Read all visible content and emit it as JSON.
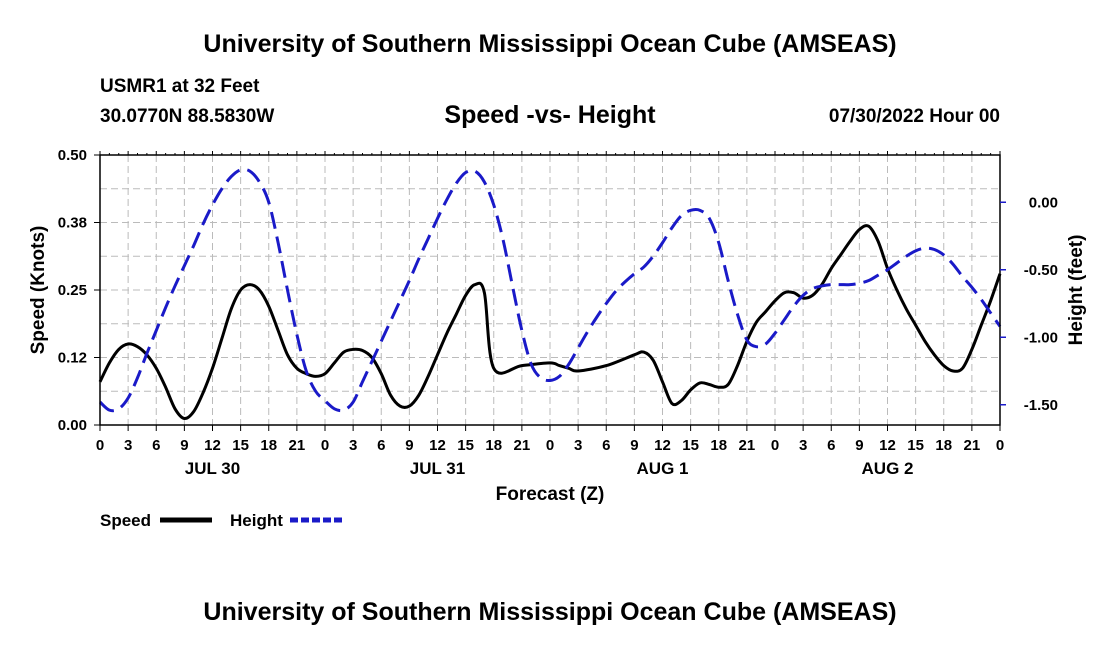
{
  "header": {
    "title": "University of Southern Mississippi Ocean Cube (AMSEAS)",
    "station": "USMR1 at 32 Feet",
    "coordinates": "30.0770N  88.5830W",
    "subtitle": "Speed -vs- Height",
    "datestamp": "07/30/2022 Hour 00"
  },
  "footer": {
    "title": "University of Southern Mississippi Ocean Cube (AMSEAS)"
  },
  "chart_data": {
    "type": "line",
    "title": "Speed -vs- Height",
    "xlabel": "Forecast (Z)",
    "ylabel_left": "Speed (Knots)",
    "ylabel_right": "Height (feet)",
    "x_unit": "forecast hour",
    "xlim": [
      0,
      96
    ],
    "ylim_left": [
      0,
      0.5
    ],
    "ylim_right": [
      -1.65,
      0.35
    ],
    "x_ticks": [
      0,
      3,
      6,
      9,
      12,
      15,
      18,
      21,
      24,
      27,
      30,
      33,
      36,
      39,
      42,
      45,
      48,
      51,
      54,
      57,
      60,
      63,
      66,
      69,
      72,
      75,
      78,
      81,
      84,
      87,
      90,
      93,
      96
    ],
    "x_tick_labels": [
      "0",
      "3",
      "6",
      "9",
      "12",
      "15",
      "18",
      "21",
      "0",
      "3",
      "6",
      "9",
      "12",
      "15",
      "18",
      "21",
      "0",
      "3",
      "6",
      "9",
      "12",
      "15",
      "18",
      "21",
      "0",
      "3",
      "6",
      "9",
      "12",
      "15",
      "18",
      "21",
      "0"
    ],
    "day_labels": [
      {
        "label": "JUL 30",
        "hour": 12
      },
      {
        "label": "JUL 31",
        "hour": 36
      },
      {
        "label": "AUG 1",
        "hour": 60
      },
      {
        "label": "AUG 2",
        "hour": 84
      }
    ],
    "y_left_ticks": [
      {
        "value": 0.0,
        "label": "0.00"
      },
      {
        "value": 0.125,
        "label": "0.12"
      },
      {
        "value": 0.25,
        "label": "0.25"
      },
      {
        "value": 0.375,
        "label": "0.38"
      },
      {
        "value": 0.5,
        "label": "0.50"
      }
    ],
    "y_right_ticks": [
      {
        "value": 0.0,
        "label": "0.00"
      },
      {
        "value": -0.5,
        "label": "-0.50"
      },
      {
        "value": -1.0,
        "label": "-1.00"
      },
      {
        "value": -1.5,
        "label": "-1.50"
      }
    ],
    "grid": true,
    "legend": [
      {
        "name": "Speed",
        "color": "#000000",
        "style": "solid"
      },
      {
        "name": "Height",
        "color": "#1a1ac8",
        "style": "dashed"
      }
    ],
    "series": [
      {
        "name": "Speed",
        "axis": "left",
        "color": "#000000",
        "points": [
          [
            0,
            0.08
          ],
          [
            1,
            0.115
          ],
          [
            2,
            0.14
          ],
          [
            3,
            0.15
          ],
          [
            4,
            0.145
          ],
          [
            5,
            0.13
          ],
          [
            6,
            0.105
          ],
          [
            7,
            0.07
          ],
          [
            8,
            0.03
          ],
          [
            9,
            0.012
          ],
          [
            10,
            0.025
          ],
          [
            11,
            0.06
          ],
          [
            12,
            0.105
          ],
          [
            13,
            0.16
          ],
          [
            14,
            0.215
          ],
          [
            15,
            0.25
          ],
          [
            16,
            0.26
          ],
          [
            17,
            0.25
          ],
          [
            18,
            0.22
          ],
          [
            19,
            0.175
          ],
          [
            20,
            0.13
          ],
          [
            21,
            0.105
          ],
          [
            22,
            0.095
          ],
          [
            23,
            0.09
          ],
          [
            24,
            0.095
          ],
          [
            25,
            0.115
          ],
          [
            26,
            0.135
          ],
          [
            27,
            0.14
          ],
          [
            28,
            0.138
          ],
          [
            29,
            0.125
          ],
          [
            30,
            0.095
          ],
          [
            31,
            0.055
          ],
          [
            32,
            0.035
          ],
          [
            33,
            0.035
          ],
          [
            34,
            0.055
          ],
          [
            35,
            0.09
          ],
          [
            36,
            0.13
          ],
          [
            37,
            0.17
          ],
          [
            38,
            0.205
          ],
          [
            39,
            0.24
          ],
          [
            40,
            0.26
          ],
          [
            41,
            0.245
          ],
          [
            42,
            0.105
          ],
          [
            45,
            0.11
          ],
          [
            48,
            0.115
          ],
          [
            49,
            0.11
          ],
          [
            50,
            0.105
          ],
          [
            51,
            0.1
          ],
          [
            54,
            0.11
          ],
          [
            57,
            0.13
          ],
          [
            58,
            0.135
          ],
          [
            59,
            0.12
          ],
          [
            60,
            0.08
          ],
          [
            61,
            0.04
          ],
          [
            62,
            0.045
          ],
          [
            63,
            0.065
          ],
          [
            64,
            0.078
          ],
          [
            65,
            0.075
          ],
          [
            66,
            0.07
          ],
          [
            67,
            0.075
          ],
          [
            68,
            0.11
          ],
          [
            69,
            0.155
          ],
          [
            70,
            0.19
          ],
          [
            71,
            0.21
          ],
          [
            72,
            0.23
          ],
          [
            73,
            0.245
          ],
          [
            74,
            0.245
          ],
          [
            75,
            0.235
          ],
          [
            76,
            0.24
          ],
          [
            77,
            0.26
          ],
          [
            78,
            0.29
          ],
          [
            79,
            0.315
          ],
          [
            80,
            0.34
          ],
          [
            81,
            0.362
          ],
          [
            82,
            0.368
          ],
          [
            83,
            0.34
          ],
          [
            84,
            0.29
          ],
          [
            85,
            0.25
          ],
          [
            86,
            0.215
          ],
          [
            87,
            0.185
          ],
          [
            88,
            0.155
          ],
          [
            89,
            0.13
          ],
          [
            90,
            0.11
          ],
          [
            91,
            0.1
          ],
          [
            92,
            0.105
          ],
          [
            93,
            0.14
          ],
          [
            94,
            0.185
          ],
          [
            95,
            0.23
          ],
          [
            96,
            0.28
          ]
        ]
      },
      {
        "name": "Height",
        "axis": "right",
        "color": "#1a1ac8",
        "points": [
          [
            0,
            -1.48
          ],
          [
            1,
            -1.54
          ],
          [
            2,
            -1.53
          ],
          [
            3,
            -1.45
          ],
          [
            4,
            -1.3
          ],
          [
            5,
            -1.12
          ],
          [
            6,
            -0.95
          ],
          [
            7,
            -0.78
          ],
          [
            8,
            -0.62
          ],
          [
            9,
            -0.47
          ],
          [
            10,
            -0.32
          ],
          [
            11,
            -0.16
          ],
          [
            12,
            -0.02
          ],
          [
            13,
            0.1
          ],
          [
            14,
            0.19
          ],
          [
            15,
            0.24
          ],
          [
            16,
            0.23
          ],
          [
            17,
            0.15
          ],
          [
            18,
            0.0
          ],
          [
            19,
            -0.3
          ],
          [
            20,
            -0.65
          ],
          [
            21,
            -0.98
          ],
          [
            22,
            -1.25
          ],
          [
            23,
            -1.4
          ],
          [
            24,
            -1.47
          ],
          [
            25,
            -1.53
          ],
          [
            26,
            -1.54
          ],
          [
            27,
            -1.48
          ],
          [
            28,
            -1.33
          ],
          [
            29,
            -1.18
          ],
          [
            30,
            -1.03
          ],
          [
            31,
            -0.88
          ],
          [
            32,
            -0.73
          ],
          [
            33,
            -0.58
          ],
          [
            34,
            -0.42
          ],
          [
            35,
            -0.27
          ],
          [
            36,
            -0.12
          ],
          [
            37,
            0.02
          ],
          [
            38,
            0.14
          ],
          [
            39,
            0.22
          ],
          [
            40,
            0.23
          ],
          [
            41,
            0.15
          ],
          [
            42,
            -0.02
          ],
          [
            43,
            -0.28
          ],
          [
            44,
            -0.62
          ],
          [
            45,
            -0.95
          ],
          [
            46,
            -1.2
          ],
          [
            47,
            -1.3
          ],
          [
            48,
            -1.32
          ],
          [
            49,
            -1.29
          ],
          [
            50,
            -1.2
          ],
          [
            51,
            -1.08
          ],
          [
            52,
            -0.96
          ],
          [
            53,
            -0.85
          ],
          [
            54,
            -0.75
          ],
          [
            55,
            -0.66
          ],
          [
            56,
            -0.59
          ],
          [
            57,
            -0.53
          ],
          [
            58,
            -0.48
          ],
          [
            59,
            -0.4
          ],
          [
            60,
            -0.3
          ],
          [
            61,
            -0.19
          ],
          [
            62,
            -0.1
          ],
          [
            63,
            -0.06
          ],
          [
            64,
            -0.06
          ],
          [
            65,
            -0.12
          ],
          [
            66,
            -0.3
          ],
          [
            67,
            -0.58
          ],
          [
            68,
            -0.83
          ],
          [
            69,
            -1.02
          ],
          [
            70,
            -1.07
          ],
          [
            71,
            -1.05
          ],
          [
            72,
            -0.97
          ],
          [
            73,
            -0.87
          ],
          [
            74,
            -0.77
          ],
          [
            75,
            -0.69
          ],
          [
            76,
            -0.64
          ],
          [
            77,
            -0.62
          ],
          [
            78,
            -0.61
          ],
          [
            79,
            -0.61
          ],
          [
            80,
            -0.61
          ],
          [
            81,
            -0.6
          ],
          [
            82,
            -0.58
          ],
          [
            83,
            -0.54
          ],
          [
            84,
            -0.5
          ],
          [
            85,
            -0.45
          ],
          [
            86,
            -0.4
          ],
          [
            87,
            -0.36
          ],
          [
            88,
            -0.34
          ],
          [
            89,
            -0.35
          ],
          [
            90,
            -0.39
          ],
          [
            91,
            -0.46
          ],
          [
            92,
            -0.55
          ],
          [
            93,
            -0.63
          ],
          [
            94,
            -0.72
          ],
          [
            95,
            -0.82
          ],
          [
            96,
            -0.92
          ]
        ]
      }
    ]
  }
}
